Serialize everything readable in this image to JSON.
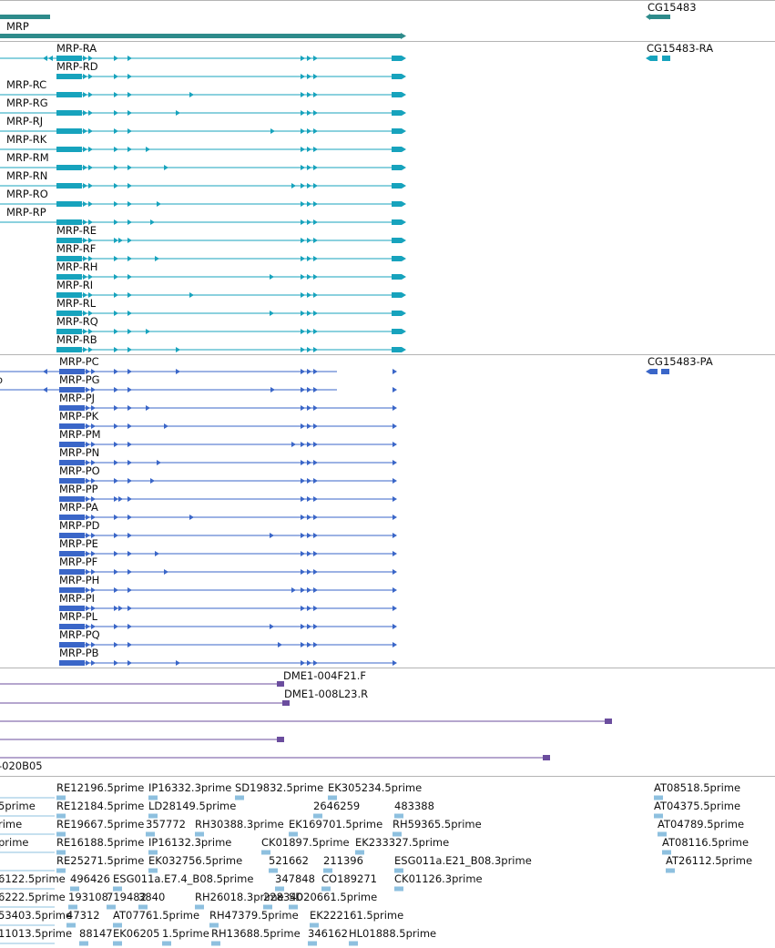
{
  "colors": {
    "gene": "#2e8b8b",
    "transcript": "#17a3bd",
    "protein": "#3a66c8",
    "clone": "#6b4d9e",
    "est": "#8ec0df",
    "divider": "#b4b4b4"
  },
  "tracks": {
    "gene": {
      "labels": [
        "MRP",
        "CG15483"
      ]
    },
    "transcripts": {
      "mrp": [
        "MRP-RA",
        "MRP-RD",
        "MRP-RC",
        "MRP-RG",
        "MRP-RJ",
        "MRP-RK",
        "MRP-RM",
        "MRP-RN",
        "MRP-RO",
        "MRP-RP",
        "MRP-RE",
        "MRP-RF",
        "MRP-RH",
        "MRP-RI",
        "MRP-RL",
        "MRP-RQ",
        "MRP-RB"
      ],
      "other": "CG15483-RA"
    },
    "proteins": {
      "mrp": [
        "MRP-PC",
        "MRP-PG",
        "MRP-PJ",
        "MRP-PK",
        "MRP-PM",
        "MRP-PN",
        "MRP-PO",
        "MRP-PP",
        "MRP-PA",
        "MRP-PD",
        "MRP-PE",
        "MRP-PF",
        "MRP-PH",
        "MRP-PI",
        "MRP-PL",
        "MRP-PQ",
        "MRP-PB"
      ],
      "other": "CG15483-PA",
      "edge_label": "o"
    },
    "clones": {
      "labels": [
        "DME1-004F21.F",
        "DME1-008L23.R",
        "-020B05"
      ]
    },
    "ests": {
      "rows": [
        [
          "RE12196.5prime",
          "IP16332.3prime",
          "SD19832.5prime",
          "EK305234.5prime",
          "AT08518.5prime"
        ],
        [
          "5prime",
          "RE12184.5prime",
          "LD28149.5prime",
          "2646259",
          "483388",
          "AT04375.5prime"
        ],
        [
          "rime",
          "RE19667.5prime",
          "357772",
          "RH30388.3prime",
          "EK169701.5prime",
          "RH59365.5prime",
          "AT04789.5prime"
        ],
        [
          "prime",
          "RE16188.5prime",
          "IP16132.3prime",
          "CK01897.5prime",
          "EK233327.5prime",
          "AT08116.5prime"
        ],
        [
          "RE25271.5prime",
          "EK032756.5prime",
          "521662",
          "211396",
          "ESG011a.E21_B08.3prime",
          "AT26112.5prime"
        ],
        [
          "6122.5prime",
          "496426",
          "ESG011a.E7.4_B08.5prime",
          "347848",
          "CO189271",
          "CK01126.3prime"
        ],
        [
          "6222.5prime",
          "193108",
          "719482",
          "3840",
          "RH26018.3prime",
          "228340",
          "SD20661.5prime"
        ],
        [
          "53403.5prime",
          "47312",
          "AT07761.5prime",
          "RH47379.5prime",
          "EK222161.5prime"
        ],
        [
          "11013.5prime",
          "88147",
          "EK06205",
          "1.5prime",
          "RH13688.5prime",
          "346162",
          "HL01888.5prime"
        ]
      ]
    }
  }
}
